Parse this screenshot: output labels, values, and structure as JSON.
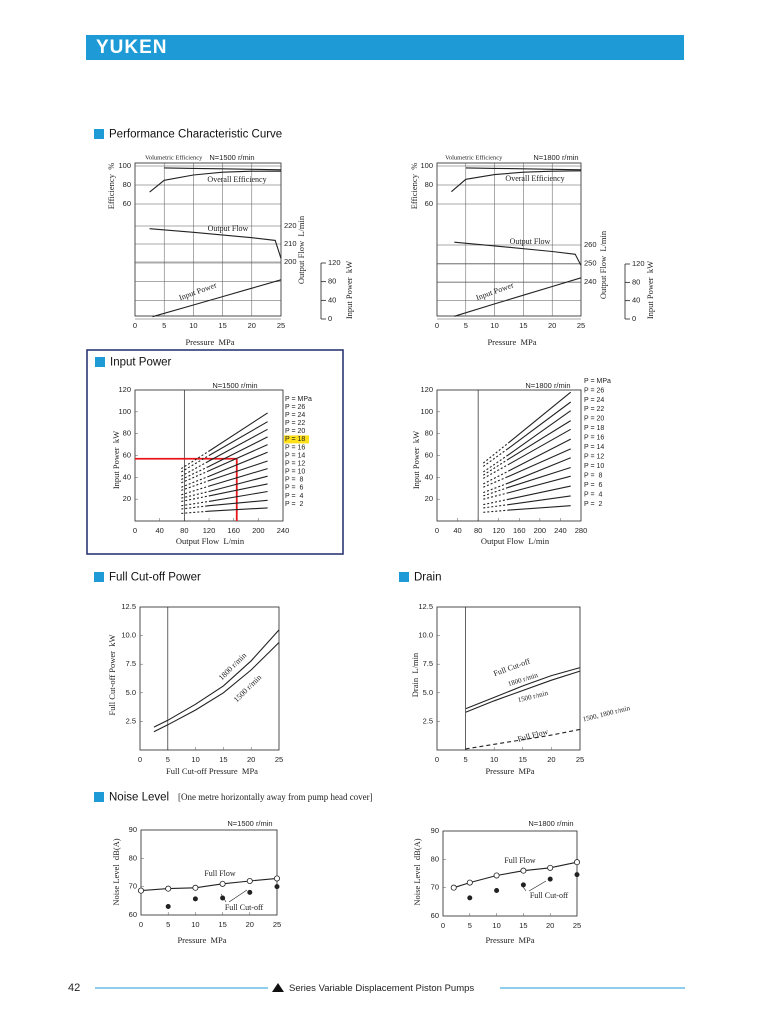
{
  "header": {
    "logo": "YUKEN"
  },
  "sections": {
    "performance": "Performance Characteristic Curve",
    "input_power": "Input Power",
    "cut_off": "Full Cut-off Power",
    "drain": "Drain",
    "noise": "Noise Level",
    "noise_note": "[One metre horizontally away from pump head cover]"
  },
  "chart_data": [
    {
      "type": "line",
      "title": "N=1500 r/min",
      "xlabel": "Pressure  MPa",
      "ylabel": "Efficiency  %",
      "y2label": "Output Flow  L/min",
      "y3label": "Input Power  kW",
      "xlim": [
        0,
        25
      ],
      "xticks": [
        0,
        5,
        10,
        15,
        20,
        25
      ],
      "ylim": [
        60,
        100
      ],
      "yticks": [
        60,
        80,
        100
      ],
      "y2lim": [
        200,
        220
      ],
      "y2ticks": [
        200,
        210,
        220
      ],
      "y3lim": [
        0,
        120
      ],
      "y3ticks": [
        0,
        40,
        80,
        120
      ],
      "grid": true,
      "color": "#222222",
      "series": [
        {
          "name": "Volumetric Efficiency",
          "x": [
            5,
            10,
            15,
            20,
            25
          ],
          "values": [
            98,
            97.5,
            97,
            96.5,
            96
          ]
        },
        {
          "name": "Overall Efficiency",
          "x": [
            2.5,
            5,
            10,
            15,
            20,
            25
          ],
          "values": [
            72.5,
            85,
            90.5,
            93.5,
            94.5,
            94.5
          ]
        },
        {
          "name": "Output Flow",
          "axis": "y2",
          "x": [
            2.5,
            10,
            20,
            24,
            25
          ],
          "values": [
            218.5,
            216.5,
            213.5,
            212,
            202
          ]
        },
        {
          "name": "Input Power",
          "axis": "y3",
          "x": [
            3,
            10,
            15,
            20,
            25
          ],
          "values": [
            5,
            30,
            48,
            66,
            84
          ]
        }
      ]
    },
    {
      "type": "line",
      "title": "N=1800 r/min",
      "xlabel": "Pressure  MPa",
      "ylabel": "Efficiency  %",
      "y2label": "Output Flow  L/min",
      "y3label": "Input Power  kW",
      "xlim": [
        0,
        25
      ],
      "xticks": [
        0,
        5,
        10,
        15,
        20,
        25
      ],
      "ylim": [
        60,
        100
      ],
      "yticks": [
        60,
        80,
        100
      ],
      "y2lim": [
        240,
        260
      ],
      "y2ticks": [
        240,
        250,
        260
      ],
      "y3lim": [
        0,
        120
      ],
      "y3ticks": [
        0,
        40,
        80,
        120
      ],
      "grid": true,
      "color": "#222222",
      "series": [
        {
          "name": "Volumetric Efficiency",
          "x": [
            5,
            10,
            15,
            20,
            25
          ],
          "values": [
            98,
            97.5,
            97,
            96.5,
            96
          ]
        },
        {
          "name": "Overall Efficiency",
          "x": [
            2.5,
            5,
            10,
            15,
            20,
            25
          ],
          "values": [
            73,
            86,
            91,
            93.5,
            94.5,
            95
          ]
        },
        {
          "name": "Output Flow",
          "axis": "y2",
          "x": [
            3,
            10,
            20,
            24,
            25
          ],
          "values": [
            261.5,
            259.5,
            256.5,
            255,
            249
          ]
        },
        {
          "name": "Input Power",
          "axis": "y3",
          "x": [
            3,
            10,
            15,
            20,
            25
          ],
          "values": [
            6,
            33,
            52,
            71,
            90
          ]
        }
      ]
    },
    {
      "type": "line",
      "title": "N=1500 r/min",
      "xlabel": "Output Flow  L/min",
      "ylabel": "Input Power  kW",
      "xlim": [
        0,
        240
      ],
      "xticks": [
        0,
        40,
        80,
        120,
        160,
        200,
        240
      ],
      "ylim": [
        0,
        120
      ],
      "yticks": [
        20,
        40,
        60,
        80,
        100,
        120
      ],
      "reference_x": 80,
      "legend_title": "P = MPa",
      "color": "#222222",
      "marker_line": {
        "x": 165,
        "y": 57,
        "color": "#e8151b"
      },
      "series": [
        {
          "name": "P = 26",
          "x": [
            75,
            120,
            215
          ],
          "values": [
            48,
            64,
            99
          ]
        },
        {
          "name": "P = 24",
          "x": [
            75,
            120,
            215
          ],
          "values": [
            45,
            60,
            91
          ]
        },
        {
          "name": "P = 22",
          "x": [
            75,
            120,
            215
          ],
          "values": [
            41,
            55,
            84
          ]
        },
        {
          "name": "P = 20",
          "x": [
            75,
            120,
            215
          ],
          "values": [
            38,
            50,
            77
          ]
        },
        {
          "name": "P = 18",
          "x": [
            75,
            120,
            215
          ],
          "values": [
            35,
            46,
            70
          ],
          "label_background": "#ffe01a"
        },
        {
          "name": "P = 16",
          "x": [
            75,
            120,
            215
          ],
          "values": [
            31,
            41,
            63
          ]
        },
        {
          "name": "P = 14",
          "x": [
            75,
            120,
            215
          ],
          "values": [
            28,
            37,
            55
          ]
        },
        {
          "name": "P = 12",
          "x": [
            75,
            120,
            215
          ],
          "values": [
            24,
            32,
            48
          ]
        },
        {
          "name": "P = 10",
          "x": [
            75,
            120,
            215
          ],
          "values": [
            21,
            27,
            41
          ]
        },
        {
          "name": "P =  8",
          "x": [
            75,
            120,
            215
          ],
          "values": [
            18,
            23,
            34
          ]
        },
        {
          "name": "P =  6",
          "x": [
            75,
            120,
            215
          ],
          "values": [
            14,
            18,
            27
          ]
        },
        {
          "name": "P =  4",
          "x": [
            75,
            120,
            215
          ],
          "values": [
            11,
            14,
            19
          ]
        },
        {
          "name": "P =  2",
          "x": [
            75,
            120,
            215
          ],
          "values": [
            7,
            9,
            12
          ]
        }
      ]
    },
    {
      "type": "line",
      "title": "N=1800 r/min",
      "xlabel": "Output Flow  L/min",
      "ylabel": "Input Power  kW",
      "xlim": [
        0,
        280
      ],
      "xticks": [
        0,
        40,
        80,
        120,
        160,
        200,
        240,
        280
      ],
      "ylim": [
        0,
        120
      ],
      "yticks": [
        20,
        40,
        60,
        80,
        100,
        120
      ],
      "reference_x": 80,
      "legend_title": "P = MPa",
      "color": "#222222",
      "series": [
        {
          "name": "P = 26",
          "x": [
            90,
            140,
            260
          ],
          "values": [
            53,
            72,
            118
          ]
        },
        {
          "name": "P = 24",
          "x": [
            90,
            140,
            260
          ],
          "values": [
            50,
            67,
            109
          ]
        },
        {
          "name": "P = 22",
          "x": [
            90,
            140,
            260
          ],
          "values": [
            45,
            61,
            101
          ]
        },
        {
          "name": "P = 20",
          "x": [
            90,
            140,
            260
          ],
          "values": [
            42,
            57,
            92
          ]
        },
        {
          "name": "P = 18",
          "x": [
            90,
            140,
            260
          ],
          "values": [
            39,
            52,
            84
          ]
        },
        {
          "name": "P = 16",
          "x": [
            90,
            140,
            260
          ],
          "values": [
            34,
            46,
            75
          ]
        },
        {
          "name": "P = 14",
          "x": [
            90,
            140,
            260
          ],
          "values": [
            31,
            41,
            66
          ]
        },
        {
          "name": "P = 12",
          "x": [
            90,
            140,
            260
          ],
          "values": [
            26,
            35,
            58
          ]
        },
        {
          "name": "P = 10",
          "x": [
            90,
            140,
            260
          ],
          "values": [
            23,
            31,
            49
          ]
        },
        {
          "name": "P =  8",
          "x": [
            90,
            140,
            260
          ],
          "values": [
            20,
            26,
            41
          ]
        },
        {
          "name": "P =  6",
          "x": [
            90,
            140,
            260
          ],
          "values": [
            15,
            20,
            32
          ]
        },
        {
          "name": "P =  4",
          "x": [
            90,
            140,
            260
          ],
          "values": [
            12,
            15,
            23
          ]
        },
        {
          "name": "P =  2",
          "x": [
            90,
            140,
            260
          ],
          "values": [
            8,
            10,
            14
          ]
        }
      ]
    },
    {
      "type": "line",
      "xlabel": "Full Cut-off Pressure  MPa",
      "ylabel": "Full Cut-off Power  kW",
      "xlim": [
        0,
        25
      ],
      "xticks": [
        0,
        5,
        10,
        15,
        20,
        25
      ],
      "ylim": [
        0,
        12.5
      ],
      "yticks": [
        2.5,
        {
          "value": 5,
          "label": "5.0"
        },
        7.5,
        {
          "value": 10,
          "label": "10.0"
        },
        12.5
      ],
      "reference_x": 5,
      "color": "#222222",
      "series": [
        {
          "name": "1800 r/min",
          "x": [
            2.5,
            5,
            10,
            15,
            20,
            25
          ],
          "values": [
            2,
            2.6,
            4,
            5.6,
            7.8,
            10.5
          ]
        },
        {
          "name": "1500 r/min",
          "x": [
            2.5,
            5,
            10,
            15,
            20,
            25
          ],
          "values": [
            1.6,
            2.2,
            3.5,
            5,
            7,
            9.4
          ]
        }
      ]
    },
    {
      "type": "line",
      "xlabel": "Pressure  MPa",
      "ylabel": "Drain  L/min",
      "xlim": [
        0,
        25
      ],
      "xticks": [
        0,
        5,
        10,
        15,
        20,
        25
      ],
      "ylim": [
        0,
        12.5
      ],
      "yticks": [
        2.5,
        {
          "value": 5,
          "label": "5.0"
        },
        7.5,
        {
          "value": 10,
          "label": "10.0"
        },
        12.5
      ],
      "reference_x": 5,
      "color": "#222222",
      "annotations": [
        "Full Cut-off",
        "Full Flow"
      ],
      "series": [
        {
          "name": "1800 r/min",
          "x": [
            5,
            10,
            15,
            20,
            25
          ],
          "values": [
            3.6,
            4.6,
            5.6,
            6.5,
            7.2
          ]
        },
        {
          "name": "1500 r/min",
          "x": [
            5,
            10,
            15,
            20,
            25
          ],
          "values": [
            3.3,
            4.3,
            5.2,
            6.1,
            6.9
          ]
        },
        {
          "name": "1500, 1800 r/min",
          "dash": true,
          "x": [
            5,
            10,
            15,
            20,
            25
          ],
          "values": [
            0.1,
            0.5,
            0.9,
            1.3,
            1.8
          ]
        }
      ]
    },
    {
      "type": "line",
      "title": "N=1500 r/min",
      "xlabel": "Pressure  MPa",
      "ylabel": "Noise Level  dB(A)",
      "xlim": [
        0,
        25
      ],
      "xticks": [
        0,
        5,
        10,
        15,
        20,
        25
      ],
      "ylim": [
        60,
        90
      ],
      "yticks": [
        60,
        70,
        80,
        90
      ],
      "color": "#222222",
      "series": [
        {
          "name": "Full Flow",
          "marker": "open",
          "x": [
            0,
            5,
            10,
            15,
            20,
            25
          ],
          "values": [
            68.6,
            69.3,
            69.6,
            71,
            72,
            72.9
          ]
        },
        {
          "name": "Full Cut-off",
          "marker": "filled",
          "line": false,
          "x": [
            5,
            10,
            15,
            20,
            25
          ],
          "values": [
            63,
            65.7,
            66,
            68,
            70
          ]
        }
      ]
    },
    {
      "type": "line",
      "title": "N=1800 r/min",
      "xlabel": "Pressure  MPa",
      "ylabel": "Noise Level  dB(A)",
      "xlim": [
        0,
        25
      ],
      "xticks": [
        0,
        5,
        10,
        15,
        20,
        25
      ],
      "ylim": [
        60,
        90
      ],
      "yticks": [
        60,
        70,
        80,
        90
      ],
      "color": "#222222",
      "series": [
        {
          "name": "Full Flow",
          "marker": "open",
          "x": [
            2,
            5,
            10,
            15,
            20,
            25
          ],
          "values": [
            70,
            71.8,
            74.3,
            76,
            77,
            79
          ]
        },
        {
          "name": "Full Cut-off",
          "marker": "filled",
          "line": false,
          "x": [
            5,
            10,
            15,
            20,
            25
          ],
          "values": [
            66.4,
            69,
            71,
            73,
            74.6
          ]
        }
      ]
    }
  ],
  "footer": {
    "page": "42",
    "text": "Series Variable Displacement Piston Pumps"
  }
}
